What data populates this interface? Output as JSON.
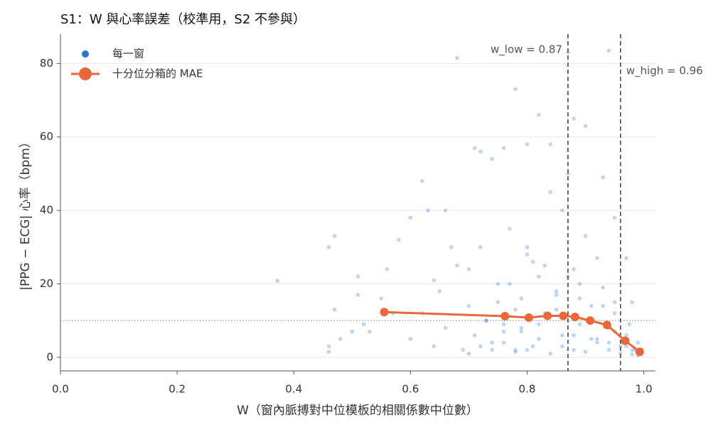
{
  "chart_data": {
    "type": "scatter",
    "title": "S1：W 與心率誤差（校準用，S2 不參與）",
    "x_label": "W（窗內脈搏對中位模板的相關係數中位數）",
    "y_label": "|PPG − ECG| 心率（bpm）",
    "xlim": [
      0,
      1.02
    ],
    "ylim": [
      -3.7,
      88
    ],
    "xticks": [
      {
        "value": 0,
        "label": "0.0"
      },
      0.2,
      0.4,
      0.6,
      0.8,
      {
        "value": 1,
        "label": "1.0"
      }
    ],
    "yticks": [
      0,
      20,
      40,
      60,
      80
    ],
    "grid": true,
    "legend": "upper left",
    "vlines": [
      {
        "x": 0.87,
        "text": "w_low = 0.87",
        "label_side": "left"
      },
      {
        "x": 0.96,
        "text": "w_high = 0.96",
        "label_side": "right"
      }
    ],
    "hline": {
      "y": 10
    },
    "series": [
      {
        "name": "每一窗",
        "color": "#2a74d5",
        "mode": "markers",
        "x": [
          0.372,
          0.46,
          0.47,
          0.47,
          0.46,
          0.46,
          0.48,
          0.5,
          0.51,
          0.51,
          0.52,
          0.53,
          0.55,
          0.56,
          0.57,
          0.58,
          0.6,
          0.62,
          0.63,
          0.64,
          0.66,
          0.67,
          0.68,
          0.7,
          0.71,
          0.72,
          0.74,
          0.76,
          0.78,
          0.8,
          0.82,
          0.84,
          0.87,
          0.88,
          0.9,
          0.94,
          0.93,
          0.95,
          0.97,
          0.98,
          0.6,
          0.62,
          0.64,
          0.65,
          0.66,
          0.68,
          0.69,
          0.7,
          0.71,
          0.72,
          0.73,
          0.74,
          0.75,
          0.76,
          0.77,
          0.78,
          0.79,
          0.8,
          0.81,
          0.82,
          0.83,
          0.84,
          0.85,
          0.86,
          0.87,
          0.88,
          0.89,
          0.9,
          0.91,
          0.92,
          0.93,
          0.94,
          0.95,
          0.96,
          0.97,
          0.98,
          0.99,
          0.7,
          0.72,
          0.74,
          0.76,
          0.78,
          0.8,
          0.82,
          0.84,
          0.86,
          0.88,
          0.9,
          0.92,
          0.94,
          0.96,
          0.98,
          0.99,
          0.75,
          0.77,
          0.79,
          0.81,
          0.83,
          0.85,
          0.87,
          0.89,
          0.91,
          0.93,
          0.95,
          0.97,
          0.985,
          0.73,
          0.76,
          0.79,
          0.82,
          0.85,
          0.88,
          0.91,
          0.94,
          0.97,
          0.99,
          0.78,
          0.8,
          0.83,
          0.86,
          0.89,
          0.92,
          0.95,
          0.975,
          0.99,
          0.995
        ],
        "values": [
          20.8,
          30,
          33,
          13,
          3,
          1.5,
          5,
          7,
          22,
          17,
          9,
          7,
          16,
          24,
          12,
          32,
          38,
          48,
          40,
          21,
          40,
          30,
          81.5,
          24,
          57,
          56,
          54,
          57,
          73,
          58,
          66,
          58,
          83,
          65,
          63,
          83.5,
          49,
          38,
          27,
          15,
          5,
          12,
          3,
          18,
          8,
          25,
          2,
          14,
          6,
          30,
          10,
          4,
          20,
          9,
          35,
          13,
          7,
          28,
          3,
          22,
          11,
          45,
          17,
          6,
          50,
          24,
          9,
          33,
          14,
          5,
          19,
          8,
          12,
          3,
          6,
          2,
          1,
          1,
          3,
          2,
          4,
          1.5,
          2,
          5,
          1,
          3,
          2,
          1.5,
          4,
          2,
          1,
          0.8,
          0.5,
          15,
          20,
          8,
          26,
          12,
          18,
          22,
          16,
          10,
          14,
          7,
          5,
          2,
          10,
          7,
          16,
          9,
          13,
          6,
          5,
          4,
          3,
          1.2,
          2,
          30,
          25,
          40,
          20,
          27,
          15,
          9,
          4,
          2
        ]
      },
      {
        "name": "十分位分箱的 MAE",
        "color": "#e8683a",
        "mode": "lines+markers",
        "x": [
          0.555,
          0.762,
          0.803,
          0.835,
          0.862,
          0.882,
          0.908,
          0.937,
          0.968,
          0.993
        ],
        "values": [
          12.3,
          11.2,
          10.8,
          11.3,
          11.3,
          11.0,
          10.0,
          8.8,
          4.5,
          1.5
        ]
      }
    ]
  }
}
